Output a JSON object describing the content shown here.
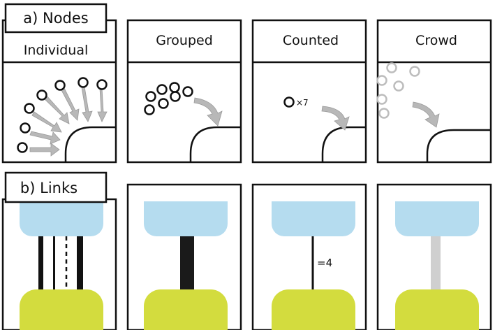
{
  "section_a": {
    "label": "a) Nodes"
  },
  "section_b": {
    "label": "b) Links"
  },
  "node_panels": [
    {
      "title": "Individual"
    },
    {
      "title": "Grouped"
    },
    {
      "title": "Counted",
      "count_label": "×7"
    },
    {
      "title": "Crowd"
    }
  ],
  "link_panels": [
    {
      "variant": "individual"
    },
    {
      "variant": "grouped"
    },
    {
      "variant": "counted",
      "count_label": "=4"
    },
    {
      "variant": "crowd"
    }
  ],
  "colors": {
    "top_block": "#b5dcef",
    "bottom_block": "#d3dc3e",
    "arrow": "#b8b8b8",
    "crowd": "#bdbdbd",
    "outline": "#111111"
  }
}
